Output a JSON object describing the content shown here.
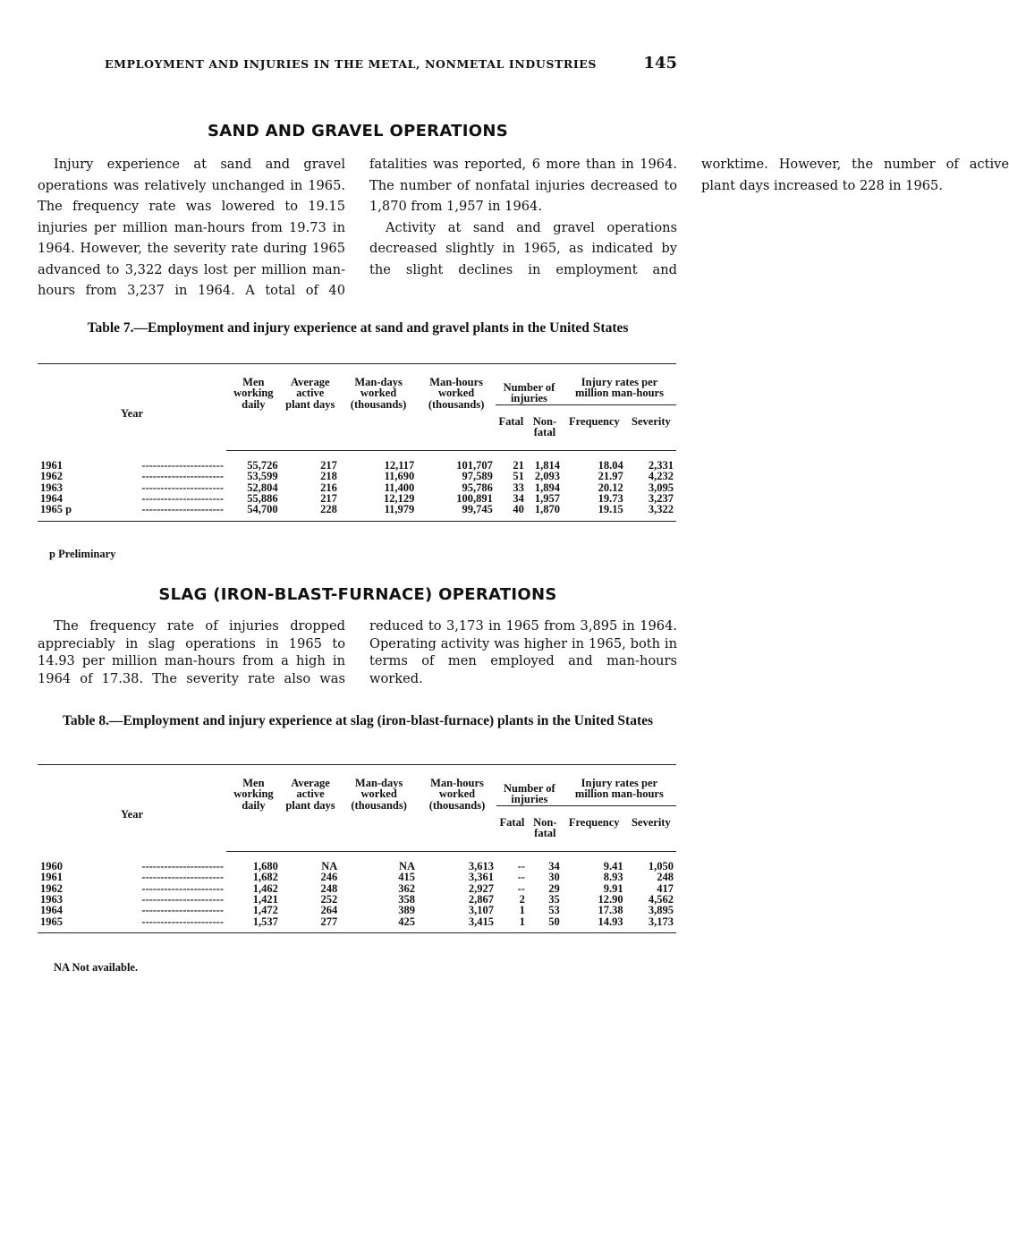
{
  "header": {
    "running_title": "EMPLOYMENT AND INJURIES IN THE METAL, NONMETAL INDUSTRIES",
    "page_number": "145"
  },
  "sand": {
    "heading": "SAND AND GRAVEL OPERATIONS",
    "para1": "Injury experience at sand and gravel operations was relatively unchanged in 1965. The frequency rate was lowered to 19.15 injuries per million man-hours from 19.73 in 1964. However, the severity rate during 1965 advanced to 3,322 days lost per million man-hours from 3,237 in 1964. A total of 40 fatalities was reported, 6 more than in 1964. The number of nonfatal injuries decreased to 1,870 from 1,957 in 1964.",
    "para2": "Activity at sand and gravel operations decreased slightly in 1965, as indicated by the slight declines in employment and worktime. However, the number of active plant days increased to 228 in 1965."
  },
  "columns": {
    "year": "Year",
    "men": "Men working daily",
    "avg": "Average active plant days",
    "mandays": "Man-days worked (thousands)",
    "manhours": "Man-hours worked (thousands)",
    "injuries": "Number of injuries",
    "fatal": "Fatal",
    "nonfatal": "Non-fatal",
    "rates": "Injury rates per million man-hours",
    "freq": "Frequency",
    "sev": "Severity"
  },
  "table7": {
    "title": "Table 7.—Employment and injury experience at sand and gravel plants in the United States",
    "rows": [
      [
        "1961",
        "55,726",
        "217",
        "12,117",
        "101,707",
        "21",
        "1,814",
        "18.04",
        "2,331"
      ],
      [
        "1962",
        "53,599",
        "218",
        "11,690",
        "97,589",
        "51",
        "2,093",
        "21.97",
        "4,232"
      ],
      [
        "1963",
        "52,804",
        "216",
        "11,400",
        "95,786",
        "33",
        "1,894",
        "20.12",
        "3,095"
      ],
      [
        "1964",
        "55,886",
        "217",
        "12,129",
        "100,891",
        "34",
        "1,957",
        "19.73",
        "3,237"
      ],
      [
        "1965 p",
        "54,700",
        "228",
        "11,979",
        "99,745",
        "40",
        "1,870",
        "19.15",
        "3,322"
      ]
    ],
    "footnote": "p Preliminary"
  },
  "slag": {
    "heading": "SLAG (IRON-BLAST-FURNACE) OPERATIONS",
    "para1": "The frequency rate of injuries dropped appreciably in slag operations in 1965 to 14.93 per million man-hours from a high in 1964 of 17.38. The severity rate also was reduced to 3,173 in 1965 from 3,895 in 1964. Operating activity was higher in 1965, both in terms of men employed and man-hours worked."
  },
  "table8": {
    "title": "Table 8.—Employment and injury experience at slag (iron-blast-furnace) plants in the United States",
    "rows": [
      [
        "1960",
        "1,680",
        "NA",
        "NA",
        "3,613",
        "--",
        "34",
        "9.41",
        "1,050"
      ],
      [
        "1961",
        "1,682",
        "246",
        "415",
        "3,361",
        "--",
        "30",
        "8.93",
        "248"
      ],
      [
        "1962",
        "1,462",
        "248",
        "362",
        "2,927",
        "--",
        "29",
        "9.91",
        "417"
      ],
      [
        "1963",
        "1,421",
        "252",
        "358",
        "2,867",
        "2",
        "35",
        "12.90",
        "4,562"
      ],
      [
        "1964",
        "1,472",
        "264",
        "389",
        "3,107",
        "1",
        "53",
        "17.38",
        "3,895"
      ],
      [
        "1965",
        "1,537",
        "277",
        "425",
        "3,415",
        "1",
        "50",
        "14.93",
        "3,173"
      ]
    ],
    "footnote": "NA Not available."
  }
}
